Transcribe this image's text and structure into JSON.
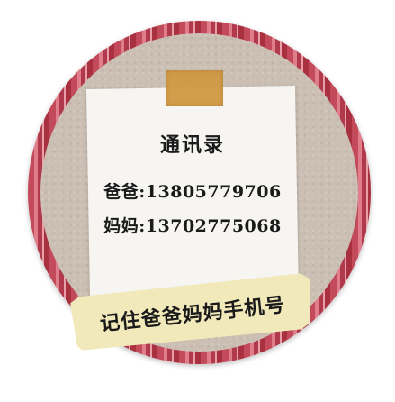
{
  "note": {
    "title": "通讯录",
    "contacts": [
      {
        "text": "爸爸:13805779706"
      },
      {
        "text": "妈妈:13702775068"
      }
    ]
  },
  "banner": {
    "text": "记住爸爸妈妈手机号"
  },
  "colors": {
    "stripe_dark": "#b03a4c",
    "stripe_light": "#e07d8a",
    "paper": "#f7f5f2",
    "tape": "#d19a44",
    "banner": "#f1e9ba"
  }
}
